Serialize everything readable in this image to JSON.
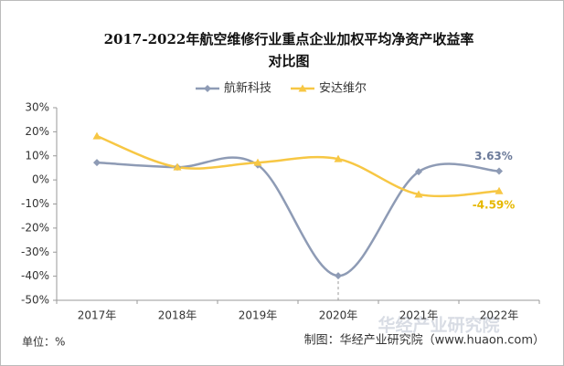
{
  "chart_data": {
    "type": "line",
    "title": [
      "2017-2022年航空维修行业重点企业加权平均净资产收益率",
      "对比图"
    ],
    "categories": [
      "2017年",
      "2018年",
      "2019年",
      "2020年",
      "2021年",
      "2022年"
    ],
    "series": [
      {
        "name": "航新科技",
        "color": "#8e9bb5",
        "marker": "diamond",
        "values": [
          7.2,
          5.3,
          6.2,
          -39.8,
          3.4,
          3.63
        ],
        "value_labels": [
          null,
          null,
          null,
          null,
          null,
          "3.63%"
        ]
      },
      {
        "name": "安达维尔",
        "color": "#f7c744",
        "marker": "triangle",
        "values": [
          18.2,
          5.3,
          7.2,
          8.7,
          -6.0,
          -4.59
        ],
        "value_labels": [
          null,
          null,
          null,
          null,
          null,
          "-4.59%"
        ]
      }
    ],
    "ylim": [
      -50,
      30
    ],
    "yticks": [
      {
        "value": -50,
        "label": "-50%"
      },
      {
        "value": -40,
        "label": "-40%"
      },
      {
        "value": -30,
        "label": "-30%"
      },
      {
        "value": -20,
        "label": "-20%"
      },
      {
        "value": -10,
        "label": "-10%"
      },
      {
        "value": 0,
        "label": "0%"
      },
      {
        "value": 10,
        "label": "10%"
      },
      {
        "value": 20,
        "label": "20%"
      },
      {
        "value": 30,
        "label": "30%"
      }
    ],
    "legend": "top",
    "unit_note": "单位：%",
    "source": "制图：华经产业研究院（www.huaon.com）",
    "watermark": "华经产业研究院"
  }
}
